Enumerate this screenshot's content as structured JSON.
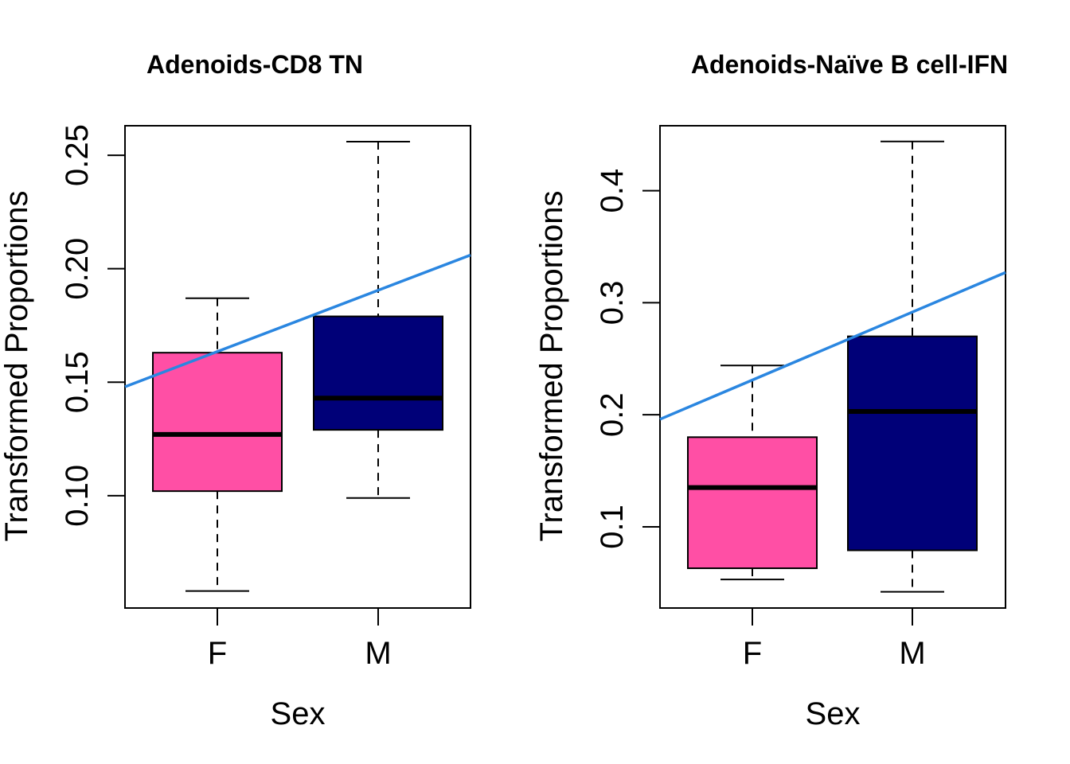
{
  "chart_data": [
    {
      "type": "box",
      "title": "Adenoids-CD8 TN",
      "xlabel": "Sex",
      "ylabel": "Transformed Proportions",
      "categories": [
        "F",
        "M"
      ],
      "ylim": [
        0.0505,
        0.263
      ],
      "yticks": [
        0.1,
        0.15,
        0.2,
        0.25
      ],
      "ytick_labels": [
        "0.10",
        "0.15",
        "0.20",
        "0.25"
      ],
      "boxes": [
        {
          "category": "F",
          "lower_whisker": 0.058,
          "q1": 0.102,
          "median": 0.127,
          "q3": 0.163,
          "upper_whisker": 0.187,
          "color": "#FF4FA5"
        },
        {
          "category": "M",
          "lower_whisker": 0.099,
          "q1": 0.129,
          "median": 0.143,
          "q3": 0.179,
          "upper_whisker": 0.256,
          "color": "#000078"
        }
      ],
      "trend_line": {
        "color": "#2A86E0",
        "y_at_left_edge": 0.148,
        "y_at_right_edge": 0.206
      },
      "grid": false,
      "legend": "none"
    },
    {
      "type": "box",
      "title": "Adenoids-Naïve B cell-IFN",
      "xlabel": "Sex",
      "ylabel": "Transformed Proportions",
      "categories": [
        "F",
        "M"
      ],
      "ylim": [
        0.0275,
        0.458
      ],
      "yticks": [
        0.1,
        0.2,
        0.3,
        0.4
      ],
      "ytick_labels": [
        "0.1",
        "0.2",
        "0.3",
        "0.4"
      ],
      "boxes": [
        {
          "category": "F",
          "lower_whisker": 0.053,
          "q1": 0.063,
          "median": 0.135,
          "q3": 0.18,
          "upper_whisker": 0.244,
          "color": "#FF4FA5"
        },
        {
          "category": "M",
          "lower_whisker": 0.042,
          "q1": 0.079,
          "median": 0.203,
          "q3": 0.27,
          "upper_whisker": 0.444,
          "color": "#000078"
        }
      ],
      "trend_line": {
        "color": "#2A86E0",
        "y_at_left_edge": 0.196,
        "y_at_right_edge": 0.327
      },
      "grid": false,
      "legend": "none"
    }
  ]
}
